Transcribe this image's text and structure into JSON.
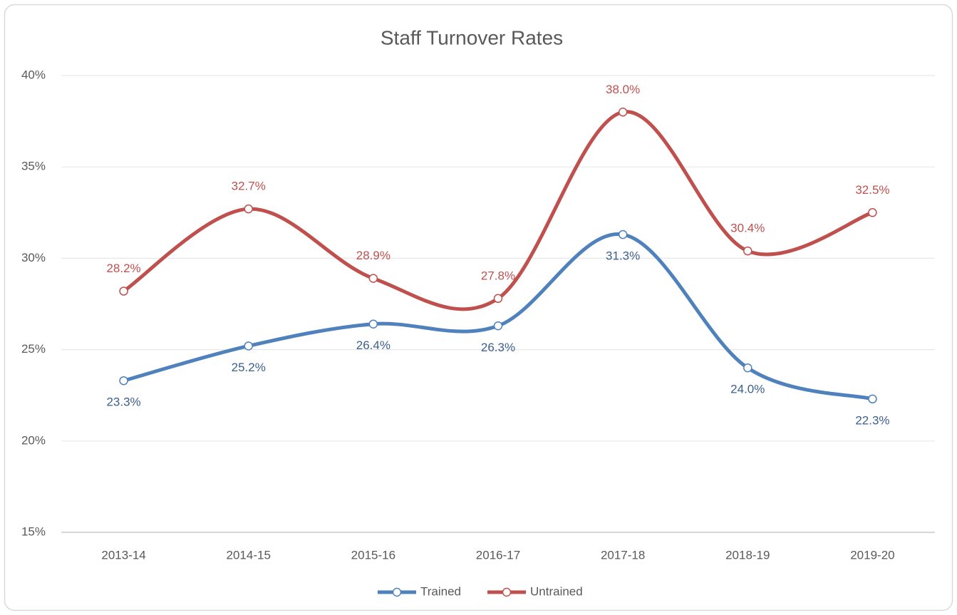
{
  "chart_data": {
    "type": "line",
    "title": "Staff Turnover Rates",
    "categories": [
      "2013-14",
      "2014-15",
      "2015-16",
      "2016-17",
      "2017-18",
      "2018-19",
      "2019-20"
    ],
    "series": [
      {
        "name": "Trained",
        "color": "#4f81bd",
        "label_color": "#3b5f8f",
        "values": [
          23.3,
          25.2,
          26.4,
          26.3,
          31.3,
          24.0,
          22.3
        ],
        "value_labels": [
          "23.3%",
          "25.2%",
          "26.4%",
          "26.3%",
          "31.3%",
          "24.0%",
          "22.3%"
        ],
        "label_position": "below"
      },
      {
        "name": "Untrained",
        "color": "#c0504d",
        "label_color": "#c0504d",
        "values": [
          28.2,
          32.7,
          28.9,
          27.8,
          38.0,
          30.4,
          32.5
        ],
        "value_labels": [
          "28.2%",
          "32.7%",
          "28.9%",
          "27.8%",
          "38.0%",
          "30.4%",
          "32.5%"
        ],
        "label_position": "above"
      }
    ],
    "ylim": [
      15,
      40
    ],
    "yticks": [
      {
        "value": 15,
        "label": "15%"
      },
      {
        "value": 20,
        "label": "20%"
      },
      {
        "value": 25,
        "label": "25%"
      },
      {
        "value": 30,
        "label": "30%"
      },
      {
        "value": 35,
        "label": "35%"
      },
      {
        "value": 40,
        "label": "40%"
      }
    ],
    "grid": true,
    "smooth": true,
    "legend": "bottom"
  }
}
